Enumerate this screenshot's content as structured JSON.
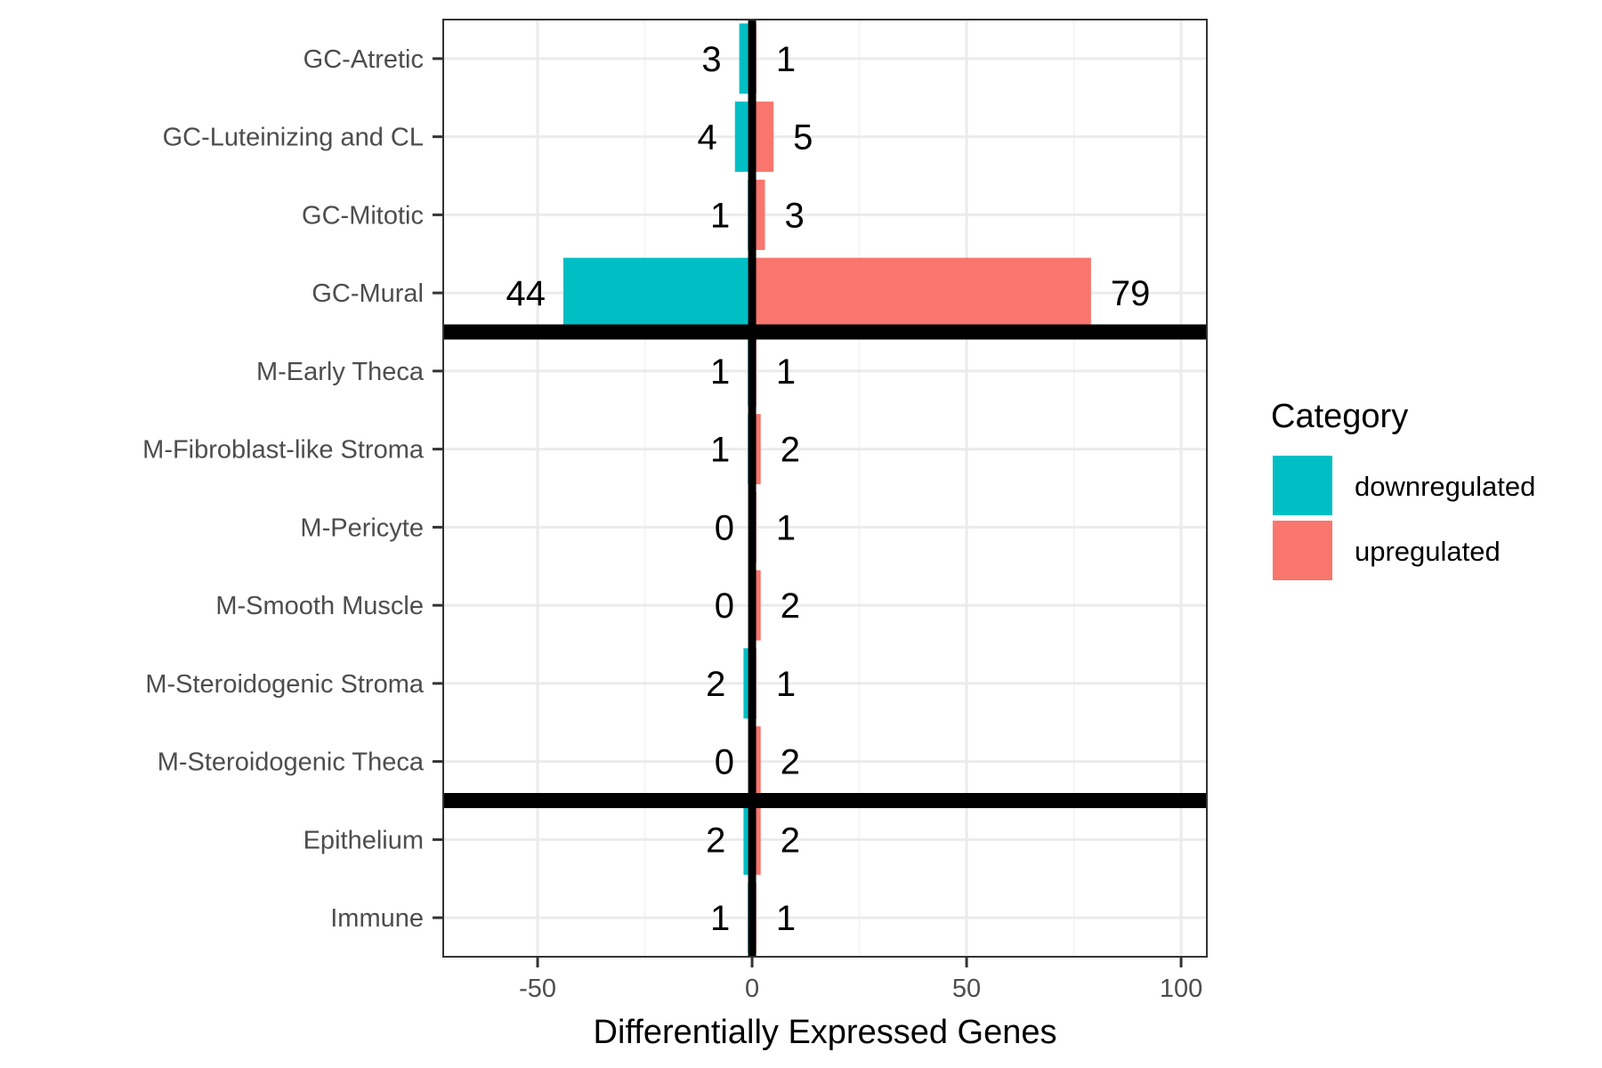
{
  "chart_data": {
    "type": "bar",
    "orientation": "horizontal",
    "categories": [
      "GC-Atretic",
      "GC-Luteinizing and CL",
      "GC-Mitotic",
      "GC-Mural",
      "M-Early Theca",
      "M-Fibroblast-like Stroma",
      "M-Pericyte",
      "M-Smooth Muscle",
      "M-Steroidogenic Stroma",
      "M-Steroidogenic Theca",
      "Epithelium",
      "Immune"
    ],
    "series": [
      {
        "name": "downregulated",
        "color": "#00BFC4",
        "values": [
          -3,
          -4,
          -1,
          -44,
          -1,
          -1,
          0,
          0,
          -2,
          0,
          -2,
          -1
        ],
        "labels": [
          "3",
          "4",
          "1",
          "44",
          "1",
          "1",
          "0",
          "0",
          "2",
          "0",
          "2",
          "1"
        ]
      },
      {
        "name": "upregulated",
        "color": "#F8766D",
        "values": [
          1,
          5,
          3,
          79,
          1,
          2,
          1,
          2,
          1,
          2,
          2,
          1
        ],
        "labels": [
          "1",
          "5",
          "3",
          "79",
          "1",
          "2",
          "1",
          "2",
          "1",
          "2",
          "2",
          "1"
        ]
      }
    ],
    "xlabel": "Differentially Expressed Genes",
    "ylabel": "",
    "xlim": [
      -72,
      106
    ],
    "xticks": [
      -50,
      0,
      50,
      100
    ],
    "xtick_labels": [
      "-50",
      "0",
      "50",
      "100"
    ],
    "group_separators_after": [
      "GC-Mural",
      "M-Steroidogenic Theca"
    ],
    "zero_line": true,
    "grid": true,
    "legend": {
      "title": "Category",
      "placement": "right",
      "entries": [
        "downregulated",
        "upregulated"
      ]
    }
  }
}
